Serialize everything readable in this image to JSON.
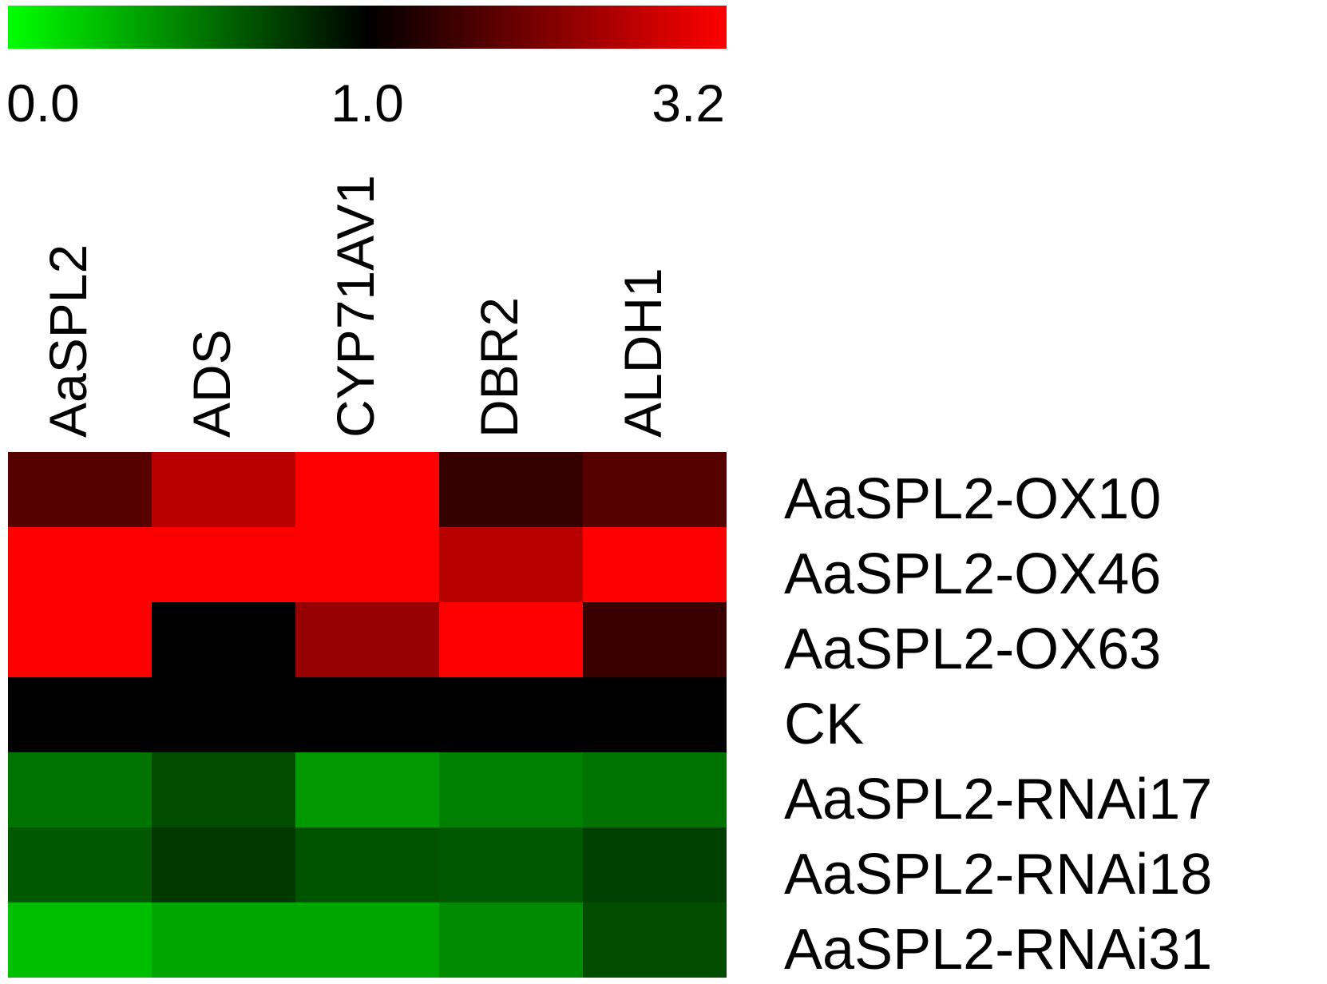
{
  "chart_data": {
    "type": "heatmap",
    "title": "",
    "xlabel": "",
    "ylabel": "",
    "columns": [
      "AaSPL2",
      "ADS",
      "CYP71AV1",
      "DBR2",
      "ALDH1"
    ],
    "rows": [
      "AaSPL2-OX10",
      "AaSPL2-OX46",
      "AaSPL2-OX63",
      "CK",
      "AaSPL2-RNAi17",
      "AaSPL2-RNAi18",
      "AaSPL2-RNAi31"
    ],
    "values": [
      [
        1.75,
        2.6,
        3.2,
        1.45,
        1.75
      ],
      [
        3.2,
        3.2,
        3.2,
        2.6,
        3.2
      ],
      [
        3.2,
        1.0,
        2.3,
        3.2,
        1.5
      ],
      [
        1.0,
        1.0,
        1.0,
        1.0,
        1.0
      ],
      [
        0.55,
        0.7,
        0.4,
        0.5,
        0.55
      ],
      [
        0.65,
        0.78,
        0.67,
        0.65,
        0.75
      ],
      [
        0.25,
        0.35,
        0.35,
        0.45,
        0.7
      ]
    ],
    "colorscale": {
      "min": 0.0,
      "mid": 1.0,
      "max": 3.2,
      "min_color": "#00ff00",
      "mid_color": "#000000",
      "max_color": "#ff0000",
      "tick_labels": [
        "0.0",
        "1.0",
        "3.2"
      ]
    },
    "legend": "top"
  }
}
